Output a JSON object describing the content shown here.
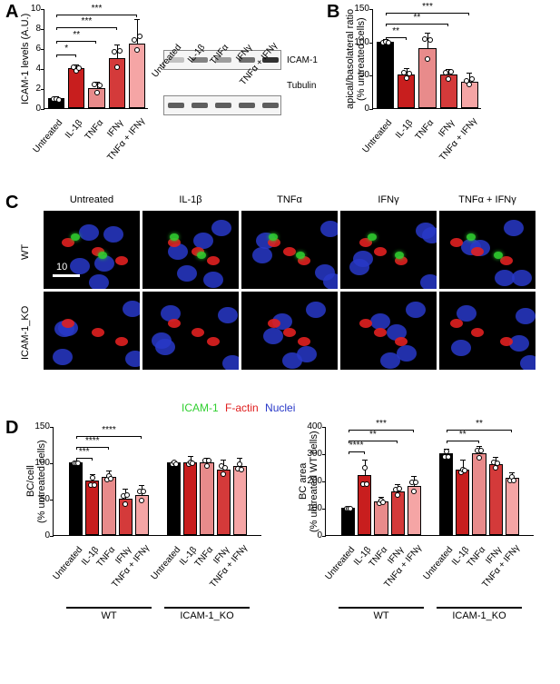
{
  "panelLabels": {
    "A": "A",
    "B": "B",
    "C": "C",
    "D": "D"
  },
  "conditions": [
    "Untreated",
    "IL-1β",
    "TNFα",
    "IFNγ",
    "TNFα + IFNγ"
  ],
  "colors": {
    "untreated": "#000000",
    "il1b": "#c81e1e",
    "tnfa": "#e88b8b",
    "ifng": "#d43a3a",
    "combo": "#f5a5a5",
    "background": "#ffffff",
    "axis": "#000000",
    "nucleus": "#2838c8",
    "factin": "#e02020",
    "icam": "#30d030"
  },
  "panelA": {
    "ylabel": "ICAM-1 levels (A.U.)",
    "ylim": [
      0,
      10
    ],
    "ytick_step": 2,
    "values": [
      1,
      4,
      2,
      5,
      6.5
    ],
    "errors": [
      0.3,
      0.5,
      0.7,
      1.5,
      2.5
    ],
    "sig": [
      {
        "from": 0,
        "to": 1,
        "label": "*",
        "y": 5.5
      },
      {
        "from": 0,
        "to": 2,
        "label": "**",
        "y": 6.8
      },
      {
        "from": 0,
        "to": 3,
        "label": "***",
        "y": 8.2
      },
      {
        "from": 0,
        "to": 4,
        "label": "***",
        "y": 9.5
      }
    ]
  },
  "wb": {
    "lanes": [
      "Untreated",
      "IL-1β",
      "TNFα",
      "IFNγ",
      "TNFα + IFNγ"
    ],
    "rows": [
      {
        "label": "ICAM-1",
        "intensities": [
          0.15,
          0.5,
          0.35,
          0.6,
          0.95
        ]
      },
      {
        "label": "Tubulin",
        "intensities": [
          0.7,
          0.7,
          0.7,
          0.7,
          0.7
        ]
      }
    ]
  },
  "panelB": {
    "ylabel": "apical/basolateral ratio\n(% untreated cells)",
    "ylim": [
      0,
      150
    ],
    "ytick_step": 50,
    "values": [
      100,
      50,
      90,
      50,
      40
    ],
    "errors": [
      5,
      12,
      25,
      10,
      15
    ],
    "sig": [
      {
        "from": 0,
        "to": 1,
        "label": "**",
        "y": 108
      },
      {
        "from": 0,
        "to": 3,
        "label": "**",
        "y": 128
      },
      {
        "from": 0,
        "to": 4,
        "label": "***",
        "y": 145
      }
    ]
  },
  "panelC": {
    "rows": [
      "WT",
      "ICAM-1_KO"
    ],
    "legend": {
      "icam": "ICAM-1",
      "factin": "F-actin",
      "nuclei": "Nuclei"
    },
    "scalebar": "10"
  },
  "panelD": {
    "charts": [
      {
        "ylabel": "BC/cell\n(% untreated cells)",
        "ylim": [
          0,
          150
        ],
        "ytick_step": 50,
        "groups": [
          "WT",
          "ICAM-1_KO"
        ],
        "wt_values": [
          100,
          75,
          80,
          50,
          55
        ],
        "wt_errors": [
          3,
          10,
          10,
          15,
          15
        ],
        "ko_values": [
          100,
          100,
          100,
          90,
          95
        ],
        "ko_errors": [
          3,
          10,
          8,
          15,
          12
        ],
        "sig": [
          {
            "from": 0,
            "to": 1,
            "label": "***",
            "y": 108
          },
          {
            "from": 0,
            "to": 2,
            "label": "****",
            "y": 122
          },
          {
            "from": 0,
            "to": 4,
            "label": "****",
            "y": 138
          }
        ]
      },
      {
        "ylabel": "BC area\n(% untreated WT cells)",
        "ylim": [
          0,
          400
        ],
        "ytick_step": 100,
        "groups": [
          "WT",
          "ICAM-1_KO"
        ],
        "wt_values": [
          100,
          220,
          125,
          160,
          180
        ],
        "wt_errors": [
          5,
          60,
          20,
          30,
          40
        ],
        "ko_values": [
          300,
          240,
          300,
          260,
          210
        ],
        "ko_errors": [
          20,
          40,
          30,
          30,
          25
        ],
        "sig_wt": [
          {
            "from": 0,
            "to": 1,
            "label": "****",
            "y": 310
          },
          {
            "from": 0,
            "to": 3,
            "label": "**",
            "y": 350
          },
          {
            "from": 0,
            "to": 4,
            "label": "***",
            "y": 390
          }
        ],
        "sig_ko": [
          {
            "from": 0,
            "to": 2,
            "label": "**",
            "y": 350
          },
          {
            "from": 0,
            "to": 4,
            "label": "**",
            "y": 390
          }
        ]
      }
    ]
  }
}
